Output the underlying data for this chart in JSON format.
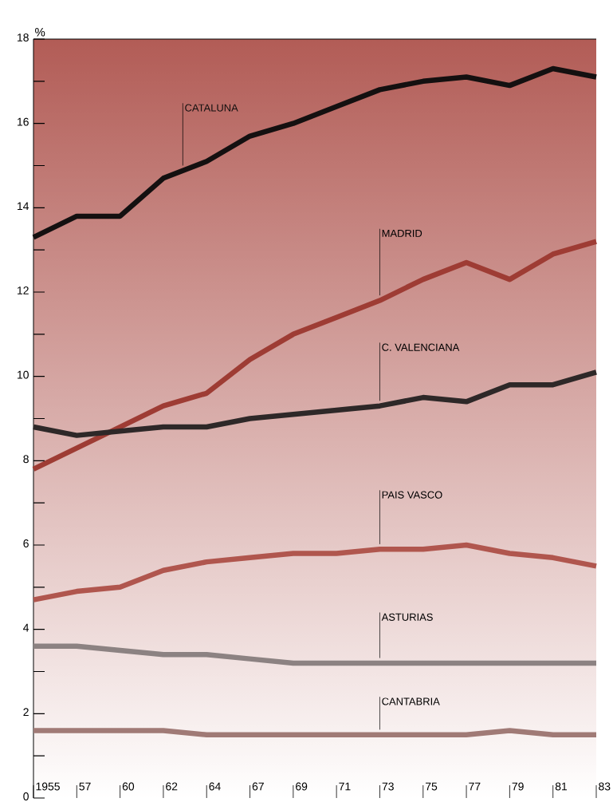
{
  "chart_data": {
    "type": "line",
    "ylabel": "%",
    "categories": [
      "1955",
      "57",
      "60",
      "62",
      "64",
      "67",
      "69",
      "71",
      "73",
      "75",
      "77",
      "79",
      "81",
      "83"
    ],
    "series": [
      {
        "name": "CATALUNA",
        "color": "#141010",
        "values": [
          13.3,
          13.8,
          13.8,
          14.7,
          15.1,
          15.7,
          16.0,
          16.4,
          16.8,
          17.0,
          17.1,
          16.9,
          17.3,
          17.1
        ]
      },
      {
        "name": "MADRID",
        "color": "#9e3c34",
        "values": [
          7.8,
          8.3,
          8.8,
          9.3,
          9.6,
          10.4,
          11.0,
          11.4,
          11.8,
          12.3,
          12.7,
          12.3,
          12.9,
          13.2
        ]
      },
      {
        "name": "C. VALENCIANA",
        "color": "#2e2828",
        "values": [
          8.8,
          8.6,
          8.7,
          8.8,
          8.8,
          9.0,
          9.1,
          9.2,
          9.3,
          9.5,
          9.4,
          9.8,
          9.8,
          10.1
        ]
      },
      {
        "name": "PAIS VASCO",
        "color": "#b0564e",
        "values": [
          4.7,
          4.9,
          5.0,
          5.4,
          5.6,
          5.7,
          5.8,
          5.8,
          5.9,
          5.9,
          6.0,
          5.8,
          5.7,
          5.5
        ]
      },
      {
        "name": "ASTURIAS",
        "color": "#8c8282",
        "values": [
          3.6,
          3.6,
          3.5,
          3.4,
          3.4,
          3.3,
          3.2,
          3.2,
          3.2,
          3.2,
          3.2,
          3.2,
          3.2,
          3.2
        ]
      },
      {
        "name": "CANTABRIA",
        "color": "#a07a76",
        "values": [
          1.6,
          1.6,
          1.6,
          1.6,
          1.5,
          1.5,
          1.5,
          1.5,
          1.5,
          1.5,
          1.5,
          1.6,
          1.5,
          1.5
        ]
      }
    ],
    "ylim": [
      0,
      18
    ],
    "yticks": [
      0,
      {
        "value": 1,
        "label": null
      },
      2,
      {
        "value": 3,
        "label": null
      },
      4,
      {
        "value": 5,
        "label": null
      },
      6,
      {
        "value": 7,
        "label": null
      },
      8,
      {
        "value": 9,
        "label": null
      },
      10,
      {
        "value": 11,
        "label": null
      },
      12,
      {
        "value": 13,
        "label": null
      },
      14,
      {
        "value": 15,
        "label": null
      },
      16,
      {
        "value": 17,
        "label": null
      },
      18
    ]
  }
}
